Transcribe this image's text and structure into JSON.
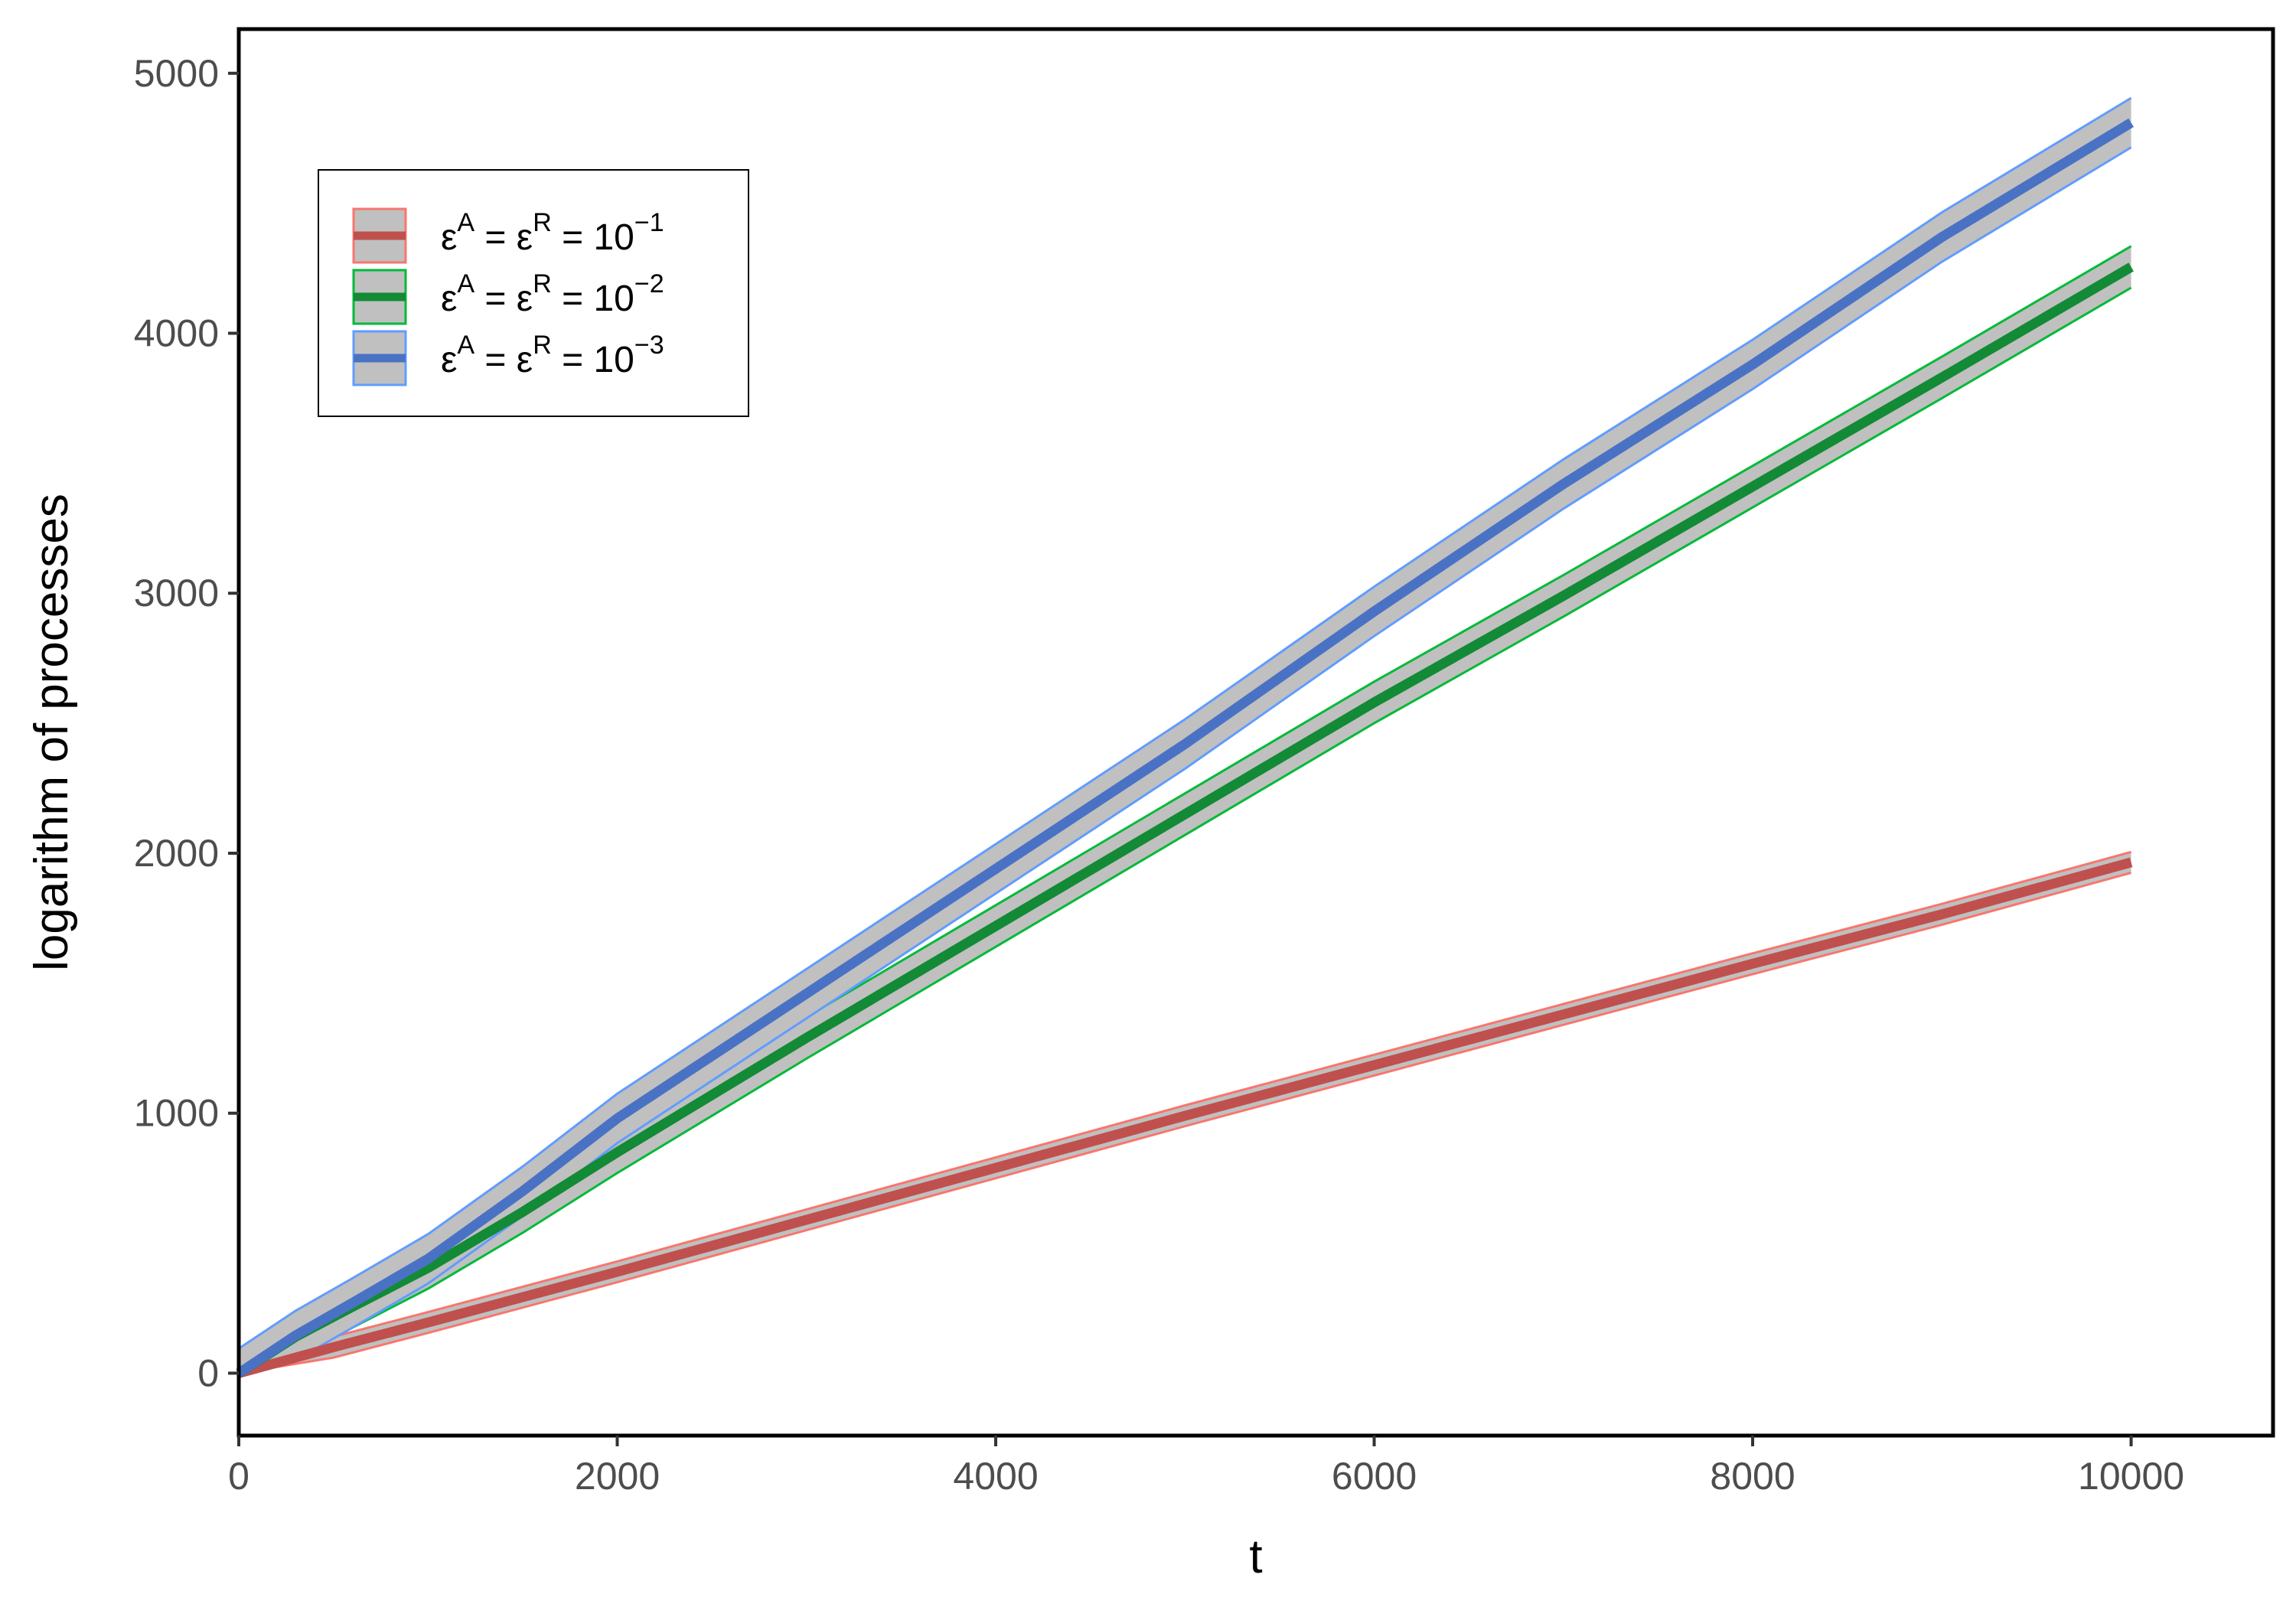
{
  "chart_data": {
    "type": "line",
    "title": "",
    "xlabel": "t",
    "ylabel": "logarithm of processes",
    "xlim": [
      0,
      10750
    ],
    "ylim": [
      -240,
      5170
    ],
    "x_ticks": [
      0,
      2000,
      4000,
      6000,
      8000,
      10000
    ],
    "y_ticks": [
      0,
      1000,
      2000,
      3000,
      4000,
      5000
    ],
    "x_tick_labels": [
      "0",
      "2000",
      "4000",
      "6000",
      "8000",
      "10000"
    ],
    "y_tick_labels": [
      "0",
      "1000",
      "2000",
      "3000",
      "4000",
      "5000"
    ],
    "grid": false,
    "legend_position": "top-left",
    "ribbon_fill": "#c0c0c0",
    "series": [
      {
        "name": "ε^A = ε^R = 10^-1",
        "legend_base": "10",
        "legend_exp": "−1",
        "line_color": "#c0504d",
        "edge_color": "#f8766d",
        "x": [
          0,
          500,
          1000,
          2000,
          3000,
          4000,
          5000,
          6000,
          7000,
          8000,
          9000,
          10000
        ],
        "y": [
          0,
          100,
          195,
          390,
          590,
          790,
          990,
          1185,
          1380,
          1575,
          1765,
          1965
        ],
        "band": 40
      },
      {
        "name": "ε^A = ε^R = 10^-2",
        "legend_base": "10",
        "legend_exp": "−2",
        "line_color": "#138a36",
        "edge_color": "#00ba38",
        "x": [
          0,
          300,
          600,
          1000,
          1500,
          2000,
          3000,
          4000,
          5000,
          6000,
          7000,
          8000,
          9000,
          10000
        ],
        "y": [
          0,
          140,
          255,
          405,
          620,
          850,
          1290,
          1720,
          2150,
          2580,
          2990,
          3410,
          3830,
          4255
        ],
        "band": 80
      },
      {
        "name": "ε^A = ε^R = 10^-3",
        "legend_base": "10",
        "legend_exp": "−3",
        "line_color": "#4a72c4",
        "edge_color": "#619cff",
        "x": [
          0,
          300,
          600,
          1000,
          1500,
          2000,
          3000,
          4000,
          5000,
          6000,
          7000,
          8000,
          9000,
          10000
        ],
        "y": [
          0,
          145,
          270,
          440,
          700,
          980,
          1460,
          1940,
          2420,
          2930,
          3420,
          3880,
          4370,
          4810
        ],
        "band": 95
      }
    ]
  }
}
